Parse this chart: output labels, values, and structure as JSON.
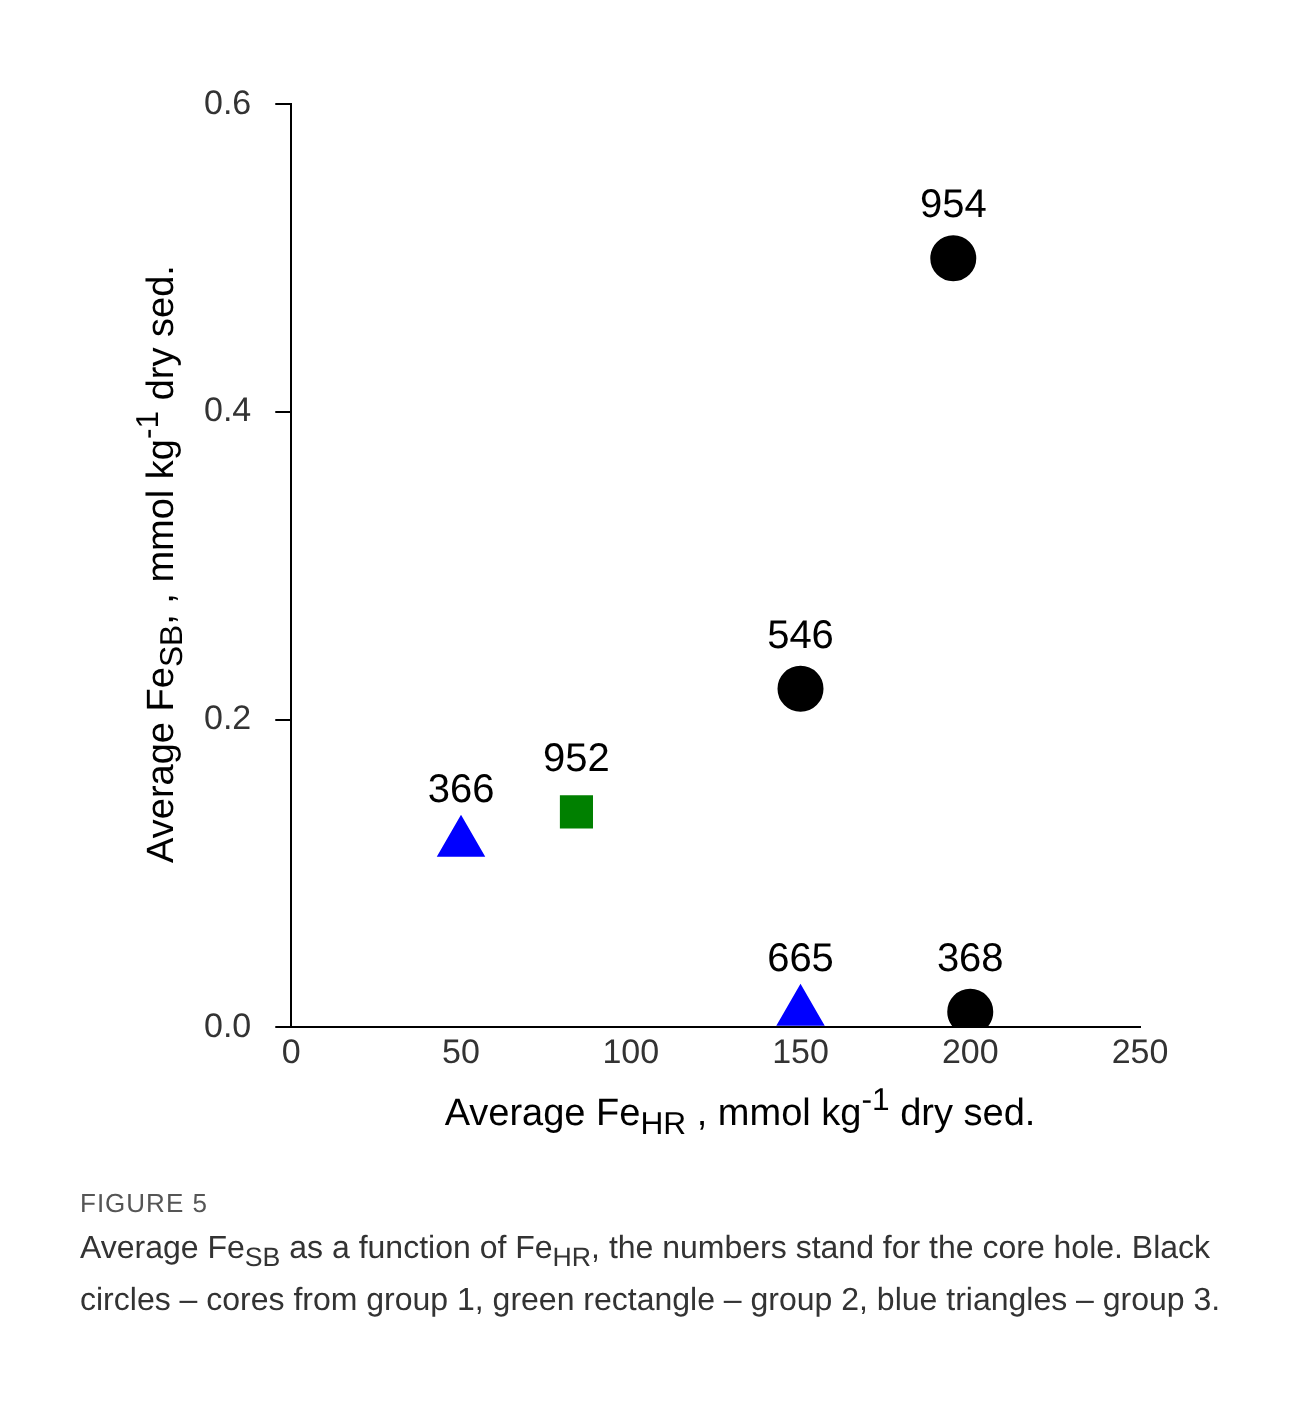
{
  "chart_data": {
    "type": "scatter",
    "xlabel": "Average Fe$_{HR}$ , mmol kg$^{-1}$ dry sed.",
    "ylabel": "Average Fe$_{SB}$, , mmol kg$^{-1}$ dry sed.",
    "series": [
      {
        "color": "#000000",
        "marker": "circle",
        "x": [
          195,
          150,
          200
        ],
        "values": [
          0.5,
          0.22,
          0.01
        ]
      },
      {
        "color": "#008000",
        "marker": "square",
        "x": [
          84
        ],
        "values": [
          0.14
        ]
      },
      {
        "color": "#0000ff",
        "marker": "triangle",
        "x": [
          50,
          150
        ],
        "values": [
          0.12,
          0.01
        ]
      }
    ],
    "xlim": [
      0,
      250
    ],
    "xticks": [
      0,
      50,
      100,
      150,
      200,
      250
    ],
    "ylim": [
      0,
      0.6
    ],
    "yticks": [
      {
        "value": 0,
        "label": "0.0"
      },
      {
        "value": 0.2,
        "label": "0.2"
      },
      {
        "value": 0.4,
        "label": "0.4"
      },
      {
        "value": 0.6,
        "label": "0.6"
      }
    ],
    "grid": false,
    "legend": false,
    "annotations": [
      {
        "text": "954",
        "x": 195,
        "y": 0.5
      },
      {
        "text": "546",
        "x": 150,
        "y": 0.22
      },
      {
        "text": "368",
        "x": 200,
        "y": 0.01
      },
      {
        "text": "952",
        "x": 84,
        "y": 0.14
      },
      {
        "text": "366",
        "x": 50,
        "y": 0.12
      },
      {
        "text": "665",
        "x": 150,
        "y": 0.01
      },
      "FIGURE 5",
      "Average Fe$_{SB}$ as a function of Fe$_{HR}$, the numbers stand for the core hole. Black circles – cores from group 1, green rectangle – group 2, blue triangles – group 3."
    ]
  }
}
